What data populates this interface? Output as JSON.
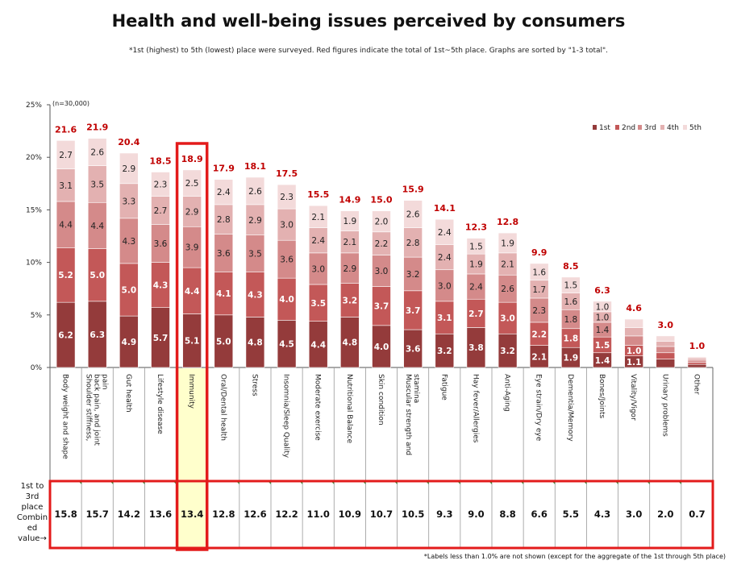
{
  "chart_data": {
    "type": "bar",
    "stacked": true,
    "title": "Health and well-being issues perceived by consumers",
    "subtitle": "*1st (highest) to 5th (lowest) place were surveyed. Red figures indicate the total of 1st~5th place. Graphs are sorted by \"1-3 total\".",
    "n_label": "(n=30,000)",
    "ylim": [
      0,
      25
    ],
    "yticks": [
      0,
      5,
      10,
      15,
      20,
      25
    ],
    "ytick_labels": [
      "0%",
      "5%",
      "10%",
      "15%",
      "20%",
      "25%"
    ],
    "grid": false,
    "legend_position": "top-right",
    "categories": [
      "Body weight and shape",
      "Shoulder stiffness, back pain, and joint pain",
      "Gut health",
      "Lifestyle disease",
      "Immunity",
      "Oral/Dental health",
      "Stress",
      "Insomnia/Sleep Quality",
      "Moderate exercise",
      "Nutritional Balance",
      "Skin condition",
      "Muscular strength and stamina",
      "Fatigue",
      "Hay fever/Allergies",
      "Anti-Aging",
      "Eye strain/Dry eye",
      "Dementia/Memory",
      "Bones/Joints",
      "Vitality/Vigor",
      "Urinary problems",
      "Other"
    ],
    "series": [
      {
        "name": "1st",
        "color": "#943b3b",
        "values": [
          6.2,
          6.3,
          4.9,
          5.7,
          5.1,
          5.0,
          4.8,
          4.5,
          4.4,
          4.8,
          4.0,
          3.6,
          3.2,
          3.8,
          3.2,
          2.1,
          1.9,
          1.4,
          1.1,
          0.8,
          0.3
        ]
      },
      {
        "name": "2nd",
        "color": "#c35858",
        "values": [
          5.2,
          5.0,
          5.0,
          4.3,
          4.4,
          4.1,
          4.3,
          4.0,
          3.5,
          3.2,
          3.7,
          3.7,
          3.1,
          2.7,
          3.0,
          2.2,
          1.8,
          1.5,
          1.0,
          0.6,
          0.2
        ]
      },
      {
        "name": "3rd",
        "color": "#d48a8a",
        "values": [
          4.4,
          4.4,
          4.3,
          3.6,
          3.9,
          3.6,
          3.5,
          3.6,
          3.0,
          2.9,
          3.0,
          3.2,
          3.0,
          2.4,
          2.6,
          2.3,
          1.8,
          1.4,
          0.9,
          0.6,
          0.2
        ]
      },
      {
        "name": "4th",
        "color": "#e3b1b1",
        "values": [
          3.1,
          3.5,
          3.3,
          2.7,
          2.9,
          2.8,
          2.9,
          3.0,
          2.4,
          2.1,
          2.2,
          2.8,
          2.4,
          1.9,
          2.1,
          1.7,
          1.6,
          1.0,
          0.8,
          0.5,
          0.2
        ]
      },
      {
        "name": "5th",
        "color": "#f3dada",
        "values": [
          2.7,
          2.6,
          2.9,
          2.3,
          2.5,
          2.4,
          2.6,
          2.3,
          2.1,
          1.9,
          2.0,
          2.6,
          2.4,
          1.5,
          1.9,
          1.6,
          1.5,
          1.0,
          0.8,
          0.5,
          0.1
        ]
      }
    ],
    "totals": [
      21.6,
      21.9,
      20.4,
      18.5,
      18.9,
      17.9,
      18.1,
      17.5,
      15.5,
      14.9,
      15.0,
      15.9,
      14.1,
      12.3,
      12.8,
      9.9,
      8.5,
      6.3,
      4.6,
      3.0,
      1.0
    ],
    "top3_label": [
      "1st to",
      "3rd",
      "place",
      "Combin",
      "ed",
      "value→"
    ],
    "top3_values": [
      15.8,
      15.7,
      14.2,
      13.6,
      13.4,
      12.8,
      12.6,
      12.2,
      11.0,
      10.9,
      10.7,
      10.5,
      9.3,
      9.0,
      8.8,
      6.6,
      5.5,
      4.3,
      3.0,
      2.0,
      0.7
    ],
    "highlighted_category": "Immunity",
    "highlight_color": "#e31b1b",
    "footnote": "*Labels less than 1.0% are not shown (except for the aggregate of the 1st through 5th place)"
  }
}
